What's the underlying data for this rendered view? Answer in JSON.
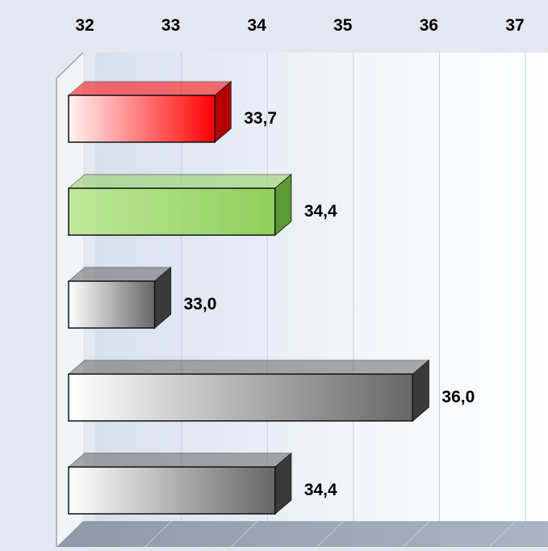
{
  "chart_data": {
    "type": "bar",
    "orientation": "horizontal",
    "style": "3d",
    "xlim": [
      32,
      37
    ],
    "x_ticks": [
      "32",
      "33",
      "34",
      "35",
      "36",
      "37"
    ],
    "x_tick_values": [
      32,
      33,
      34,
      35,
      36,
      37
    ],
    "axis_labels_position": "top",
    "grid": true,
    "legend": "none",
    "title": "",
    "xlabel": "",
    "ylabel": "",
    "categories": [],
    "bars": [
      {
        "value": 33.7,
        "label": "33,7",
        "color": "#ff0000",
        "light": "#fff3f3",
        "dark": "#b30000"
      },
      {
        "value": 34.4,
        "label": "34,4",
        "color": "#8fcf5a",
        "light": "#bfe89a",
        "dark": "#5e9a33"
      },
      {
        "value": 33.0,
        "label": "33,0",
        "color": "#666666",
        "light": "#ffffff",
        "dark": "#3a3a3a"
      },
      {
        "value": 36.0,
        "label": "36,0",
        "color": "#666666",
        "light": "#ffffff",
        "dark": "#3a3a3a"
      },
      {
        "value": 34.4,
        "label": "34,4",
        "color": "#666666",
        "light": "#ffffff",
        "dark": "#3a3a3a"
      }
    ]
  }
}
